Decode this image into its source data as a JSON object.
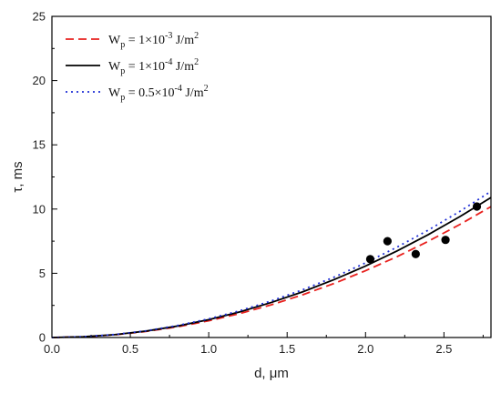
{
  "chart_data": {
    "type": "line",
    "xlabel": "d, μm",
    "ylabel": "τ, ms",
    "xlim": [
      0,
      2.8
    ],
    "ylim": [
      0,
      25
    ],
    "x_ticks": [
      0.0,
      0.5,
      1.0,
      1.5,
      2.0,
      2.5
    ],
    "x_tick_labels": [
      "0.0",
      "0.5",
      "1.0",
      "1.5",
      "2.0",
      "2.5"
    ],
    "y_ticks": [
      0,
      5,
      10,
      15,
      20,
      25
    ],
    "y_tick_labels": [
      "0",
      "5",
      "10",
      "15",
      "20",
      "25"
    ],
    "grid": false,
    "legend_position": "top-left",
    "x": [
      0.0,
      0.2,
      0.4,
      0.6,
      0.8,
      1.0,
      1.2,
      1.4,
      1.6,
      1.8,
      2.0,
      2.2,
      2.4,
      2.6,
      2.8
    ],
    "series": [
      {
        "name": "W_p = 1×10^-3 J/m^2",
        "legend_label": {
          "base": "W",
          "sub": "p",
          "mid": " = 1×10",
          "exp": "-3",
          "unit": " J/m",
          "unit_exp": "2"
        },
        "color": "#e8211e",
        "style": "dashed",
        "values": [
          0.0,
          0.05,
          0.21,
          0.47,
          0.83,
          1.3,
          1.87,
          2.55,
          3.33,
          4.21,
          5.2,
          6.29,
          7.49,
          8.79,
          10.19
        ]
      },
      {
        "name": "W_p = 1×10^-4 J/m^2",
        "legend_label": {
          "base": "W",
          "sub": "p",
          "mid": " = 1×10",
          "exp": "-4",
          "unit": " J/m",
          "unit_exp": "2"
        },
        "color": "#000000",
        "style": "solid",
        "values": [
          0.0,
          0.06,
          0.22,
          0.5,
          0.89,
          1.39,
          2.0,
          2.73,
          3.56,
          4.51,
          5.56,
          6.73,
          8.01,
          9.4,
          10.9
        ]
      },
      {
        "name": "W_p = 0.5×10^-4 J/m^2",
        "legend_label": {
          "base": "W",
          "sub": "p",
          "mid": " = 0.5×10",
          "exp": "-4",
          "unit": " J/m",
          "unit_exp": "2"
        },
        "color": "#1f2fd6",
        "style": "dotted",
        "values": [
          0.0,
          0.06,
          0.23,
          0.52,
          0.93,
          1.45,
          2.09,
          2.85,
          3.72,
          4.7,
          5.81,
          7.03,
          8.36,
          9.81,
          11.38
        ]
      }
    ],
    "points": {
      "type": "scatter",
      "color": "#000000",
      "x": [
        2.03,
        2.14,
        2.32,
        2.51,
        2.71
      ],
      "y": [
        6.1,
        7.5,
        6.5,
        7.6,
        10.2
      ]
    }
  }
}
